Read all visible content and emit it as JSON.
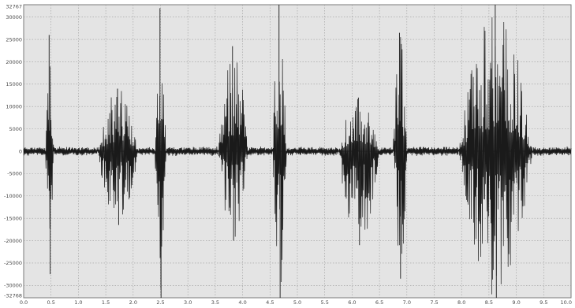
{
  "chart_data": {
    "type": "line",
    "title": "",
    "xlabel": "",
    "ylabel": "",
    "xlim": [
      0.0,
      10.0
    ],
    "ylim": [
      -32768,
      32767
    ],
    "grid": true,
    "x_ticks": [
      "0.0",
      "0.5",
      "1.0",
      "1.5",
      "2.0",
      "2.5",
      "3.0",
      "3.5",
      "4.0",
      "4.5",
      "5.0",
      "5.5",
      "6.0",
      "6.5",
      "7.0",
      "7.5",
      "8.0",
      "8.5",
      "9.0",
      "9.5",
      "10.0"
    ],
    "y_ticks": [
      "32767",
      "30000",
      "25000",
      "20000",
      "15000",
      "10000",
      "5000",
      "0",
      "-5000",
      "-10000",
      "-15000",
      "-20000",
      "-25000",
      "-30000",
      "-32768"
    ],
    "series": [
      {
        "values_description_free": true,
        "bursts": [
          {
            "x": [
              0.4,
              0.55
            ],
            "peak_pos": 26000,
            "peak_neg": -27500
          },
          {
            "x": [
              1.35,
              2.1
            ],
            "peak_pos": 14000,
            "peak_neg": -16500
          },
          {
            "x": [
              2.4,
              2.6
            ],
            "peak_pos": 32000,
            "peak_neg": -32768
          },
          {
            "x": [
              3.55,
              4.1
            ],
            "peak_pos": 23500,
            "peak_neg": -20000
          },
          {
            "x": [
              4.55,
              4.8
            ],
            "peak_pos": 32767,
            "peak_neg": -32768
          },
          {
            "x": [
              5.75,
              6.5
            ],
            "peak_pos": 12000,
            "peak_neg": -21000
          },
          {
            "x": [
              6.75,
              7.0
            ],
            "peak_pos": 26500,
            "peak_neg": -28500
          },
          {
            "x": [
              7.95,
              9.3
            ],
            "peak_pos": 32767,
            "peak_neg": -32768
          }
        ]
      }
    ],
    "colors": {
      "background": "#e4e4e4",
      "grid": "#9a9a9a",
      "wave": "#1a1a1a",
      "axis": "#4a4a4a"
    }
  }
}
